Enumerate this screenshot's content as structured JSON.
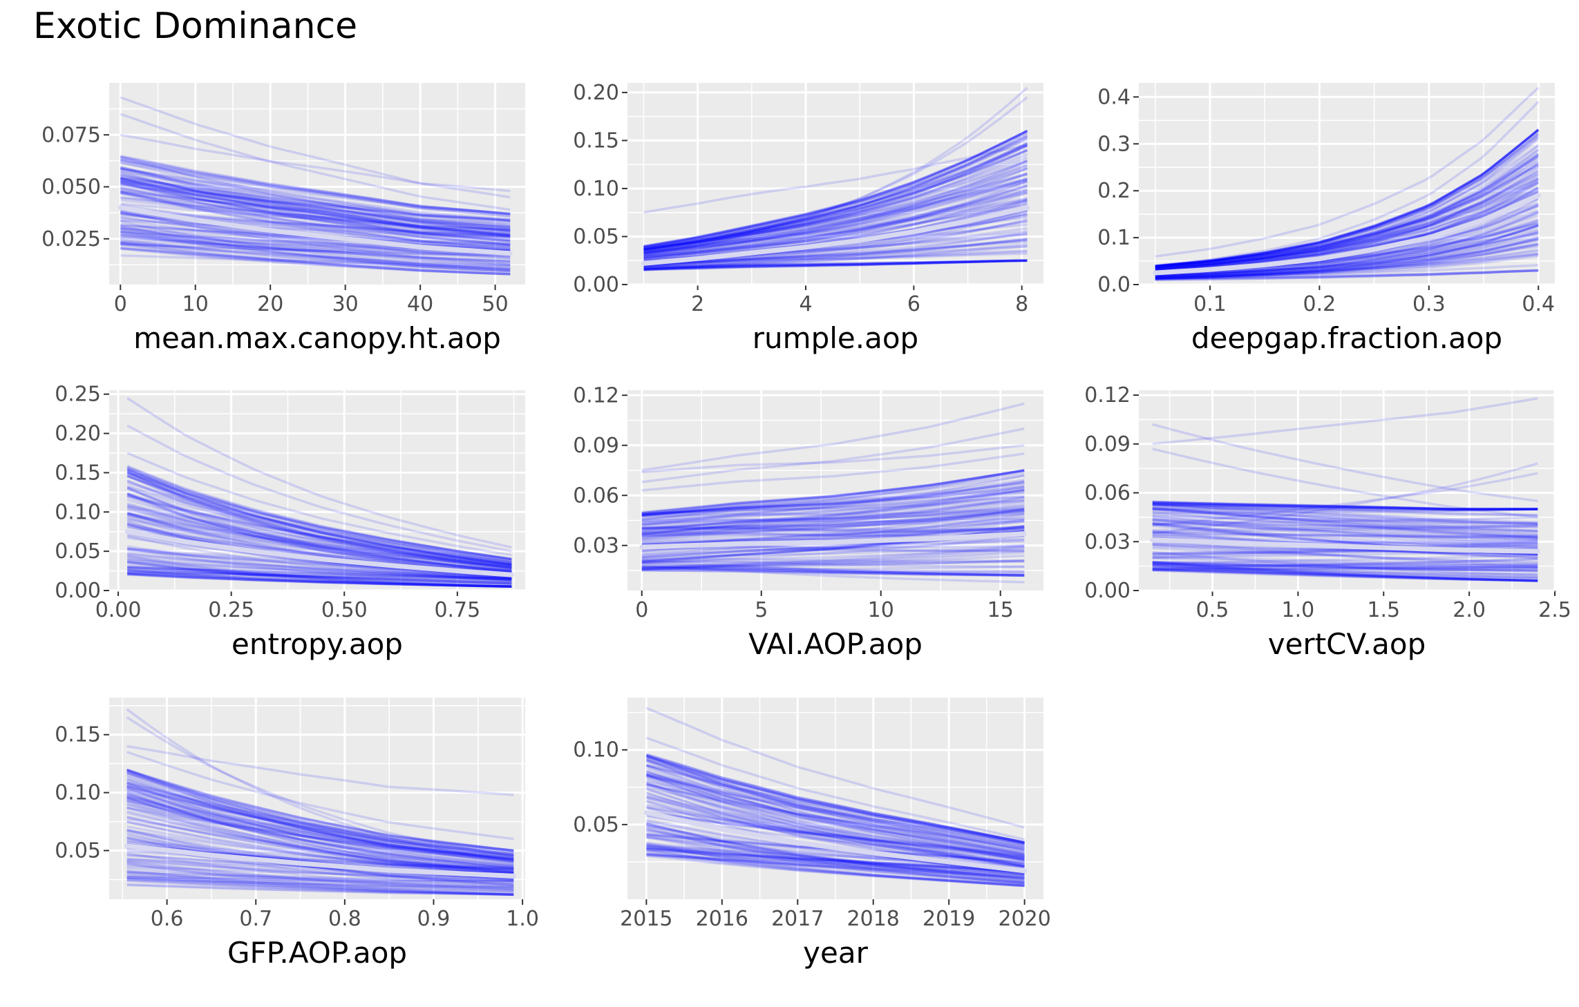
{
  "title": "Exotic Dominance",
  "style": {
    "panel_bg": "#EBEBEB",
    "grid_color": "#FFFFFF",
    "draw_color": "#0000FF",
    "mean_color": "#D8D8F0",
    "tick_text_color": "#4D4D4D",
    "axis_title_color": "#000000"
  },
  "chart_data": [
    {
      "type": "line",
      "xlabel": "mean.max.canopy.ht.aop",
      "ylabel": "",
      "xlim": [
        -1.5,
        54
      ],
      "ylim": [
        0.003,
        0.1
      ],
      "xticks": [
        0,
        10,
        20,
        30,
        40,
        50
      ],
      "xtick_labels": [
        "0",
        "10",
        "20",
        "30",
        "40",
        "50"
      ],
      "yticks": [
        0.025,
        0.05,
        0.075
      ],
      "ytick_labels": [
        "0.025",
        "0.050",
        "0.075"
      ],
      "x_range": [
        0,
        52
      ],
      "mean_curve": {
        "x": [
          0,
          10,
          20,
          30,
          40,
          52
        ],
        "y": [
          0.04,
          0.034,
          0.029,
          0.025,
          0.021,
          0.018
        ]
      },
      "draws_start_range": [
        0.02,
        0.065
      ],
      "draws_end_range": [
        0.008,
        0.037
      ],
      "outlier_draws": [
        {
          "x": [
            0,
            52
          ],
          "y": [
            0.093,
            0.045
          ]
        },
        {
          "x": [
            0,
            52
          ],
          "y": [
            0.085,
            0.039
          ]
        },
        {
          "x": [
            0,
            52
          ],
          "y": [
            0.075,
            0.048
          ]
        },
        {
          "x": [
            0,
            52
          ],
          "y": [
            0.017,
            0.012
          ]
        }
      ],
      "n_draws": 110,
      "grid": true
    },
    {
      "type": "line",
      "xlabel": "rumple.aop",
      "ylabel": "",
      "xlim": [
        0.7,
        8.4
      ],
      "ylim": [
        0.0,
        0.21
      ],
      "xticks": [
        2,
        4,
        6,
        8
      ],
      "xtick_labels": [
        "2",
        "4",
        "6",
        "8"
      ],
      "yticks": [
        0.0,
        0.05,
        0.1,
        0.15,
        0.2
      ],
      "ytick_labels": [
        "0.00",
        "0.05",
        "0.10",
        "0.15",
        "0.20"
      ],
      "x_range": [
        1.0,
        8.1
      ],
      "mean_curve": {
        "x": [
          1,
          2,
          3,
          4,
          5,
          6,
          7,
          8.1
        ],
        "y": [
          0.022,
          0.027,
          0.033,
          0.039,
          0.046,
          0.055,
          0.066,
          0.08
        ]
      },
      "draws_start_range": [
        0.015,
        0.04
      ],
      "draws_end_range": [
        0.025,
        0.16
      ],
      "outlier_draws": [
        {
          "x": [
            1,
            8.1
          ],
          "y": [
            0.075,
            0.145
          ]
        },
        {
          "x": [
            1,
            8.1
          ],
          "y": [
            0.03,
            0.205
          ]
        },
        {
          "x": [
            1,
            8.1
          ],
          "y": [
            0.032,
            0.195
          ]
        }
      ],
      "n_draws": 110,
      "grid": true
    },
    {
      "type": "line",
      "xlabel": "deepgap.fraction.aop",
      "ylabel": "",
      "xlim": [
        0.035,
        0.415
      ],
      "ylim": [
        0.0,
        0.43
      ],
      "xticks": [
        0.1,
        0.2,
        0.3,
        0.4
      ],
      "xtick_labels": [
        "0.1",
        "0.2",
        "0.3",
        "0.4"
      ],
      "yticks": [
        0.0,
        0.1,
        0.2,
        0.3,
        0.4
      ],
      "ytick_labels": [
        "0.0",
        "0.1",
        "0.2",
        "0.3",
        "0.4"
      ],
      "x_range": [
        0.05,
        0.4
      ],
      "mean_curve": {
        "x": [
          0.05,
          0.1,
          0.15,
          0.2,
          0.25,
          0.3,
          0.35,
          0.4
        ],
        "y": [
          0.025,
          0.032,
          0.042,
          0.055,
          0.075,
          0.1,
          0.138,
          0.19
        ]
      },
      "draws_start_range": [
        0.01,
        0.04
      ],
      "draws_end_range": [
        0.03,
        0.33
      ],
      "outlier_draws": [
        {
          "x": [
            0.05,
            0.4
          ],
          "y": [
            0.06,
            0.42
          ]
        },
        {
          "x": [
            0.05,
            0.4
          ],
          "y": [
            0.04,
            0.39
          ]
        }
      ],
      "n_draws": 110,
      "grid": true
    },
    {
      "type": "line",
      "xlabel": "entropy.aop",
      "ylabel": "",
      "xlim": [
        -0.02,
        0.9
      ],
      "ylim": [
        0.0,
        0.255
      ],
      "xticks": [
        0.0,
        0.25,
        0.5,
        0.75
      ],
      "xtick_labels": [
        "0.00",
        "0.25",
        "0.50",
        "0.75"
      ],
      "yticks": [
        0.0,
        0.05,
        0.1,
        0.15,
        0.2,
        0.25
      ],
      "ytick_labels": [
        "0.00",
        "0.05",
        "0.10",
        "0.15",
        "0.20",
        "0.25"
      ],
      "x_range": [
        0.02,
        0.87
      ],
      "mean_curve": {
        "x": [
          0.02,
          0.15,
          0.3,
          0.45,
          0.6,
          0.75,
          0.87
        ],
        "y": [
          0.075,
          0.062,
          0.05,
          0.04,
          0.032,
          0.025,
          0.02
        ]
      },
      "draws_start_range": [
        0.02,
        0.16
      ],
      "draws_end_range": [
        0.005,
        0.04
      ],
      "outlier_draws": [
        {
          "x": [
            0.02,
            0.87
          ],
          "y": [
            0.245,
            0.055
          ]
        },
        {
          "x": [
            0.02,
            0.87
          ],
          "y": [
            0.21,
            0.05
          ]
        },
        {
          "x": [
            0.02,
            0.87
          ],
          "y": [
            0.175,
            0.045
          ]
        }
      ],
      "n_draws": 110,
      "grid": true
    },
    {
      "type": "line",
      "xlabel": "VAI.AOP.aop",
      "ylabel": "",
      "xlim": [
        -0.6,
        16.8
      ],
      "ylim": [
        0.003,
        0.123
      ],
      "xticks": [
        0,
        5,
        10,
        15
      ],
      "xtick_labels": [
        "0",
        "5",
        "10",
        "15"
      ],
      "yticks": [
        0.03,
        0.06,
        0.09,
        0.12
      ],
      "ytick_labels": [
        "0.03",
        "0.06",
        "0.09",
        "0.12"
      ],
      "x_range": [
        0,
        16
      ],
      "mean_curve": {
        "x": [
          0,
          4,
          8,
          12,
          16
        ],
        "y": [
          0.029,
          0.031,
          0.032,
          0.034,
          0.037
        ]
      },
      "draws_start_range": [
        0.015,
        0.05
      ],
      "draws_end_range": [
        0.012,
        0.075
      ],
      "outlier_draws": [
        {
          "x": [
            0,
            16
          ],
          "y": [
            0.075,
            0.115
          ]
        },
        {
          "x": [
            0,
            16
          ],
          "y": [
            0.068,
            0.1
          ]
        },
        {
          "x": [
            0,
            16
          ],
          "y": [
            0.074,
            0.09
          ]
        },
        {
          "x": [
            0,
            16
          ],
          "y": [
            0.063,
            0.085
          ]
        },
        {
          "x": [
            0,
            16
          ],
          "y": [
            0.018,
            0.008
          ]
        }
      ],
      "n_draws": 110,
      "grid": true
    },
    {
      "type": "line",
      "xlabel": "vertCV.aop",
      "ylabel": "",
      "xlim": [
        0.07,
        2.5
      ],
      "ylim": [
        0.0,
        0.123
      ],
      "xticks": [
        0.5,
        1.0,
        1.5,
        2.0,
        2.5
      ],
      "xtick_labels": [
        "0.5",
        "1.0",
        "1.5",
        "2.0",
        "2.5"
      ],
      "yticks": [
        0.0,
        0.03,
        0.06,
        0.09,
        0.12
      ],
      "ytick_labels": [
        "0.00",
        "0.03",
        "0.06",
        "0.09",
        "0.12"
      ],
      "x_range": [
        0.15,
        2.4
      ],
      "mean_curve": {
        "x": [
          0.15,
          0.7,
          1.3,
          1.9,
          2.4
        ],
        "y": [
          0.031,
          0.029,
          0.027,
          0.025,
          0.024
        ]
      },
      "draws_start_range": [
        0.012,
        0.055
      ],
      "draws_end_range": [
        0.006,
        0.05
      ],
      "outlier_draws": [
        {
          "x": [
            0.15,
            2.4
          ],
          "y": [
            0.09,
            0.118
          ]
        },
        {
          "x": [
            0.15,
            2.4
          ],
          "y": [
            0.102,
            0.055
          ]
        },
        {
          "x": [
            0.15,
            2.4
          ],
          "y": [
            0.087,
            0.045
          ]
        },
        {
          "x": [
            0.15,
            2.4
          ],
          "y": [
            0.035,
            0.078
          ]
        },
        {
          "x": [
            0.15,
            2.4
          ],
          "y": [
            0.04,
            0.072
          ]
        }
      ],
      "n_draws": 110,
      "grid": true
    },
    {
      "type": "line",
      "xlabel": "GFP.AOP.aop",
      "ylabel": "",
      "xlim": [
        0.535,
        1.003
      ],
      "ylim": [
        0.008,
        0.182
      ],
      "xticks": [
        0.6,
        0.7,
        0.8,
        0.9,
        1.0
      ],
      "xtick_labels": [
        "0.6",
        "0.7",
        "0.8",
        "0.9",
        "1.0"
      ],
      "yticks": [
        0.05,
        0.1,
        0.15
      ],
      "ytick_labels": [
        "0.05",
        "0.10",
        "0.15"
      ],
      "x_range": [
        0.555,
        0.99
      ],
      "mean_curve": {
        "x": [
          0.555,
          0.65,
          0.75,
          0.85,
          0.99
        ],
        "y": [
          0.054,
          0.046,
          0.039,
          0.033,
          0.028
        ]
      },
      "draws_start_range": [
        0.02,
        0.12
      ],
      "draws_end_range": [
        0.012,
        0.05
      ],
      "outlier_draws": [
        {
          "x": [
            0.555,
            0.99
          ],
          "y": [
            0.172,
            0.04
          ]
        },
        {
          "x": [
            0.555,
            0.99
          ],
          "y": [
            0.165,
            0.045
          ]
        },
        {
          "x": [
            0.555,
            0.99
          ],
          "y": [
            0.14,
            0.098
          ]
        },
        {
          "x": [
            0.555,
            0.99
          ],
          "y": [
            0.135,
            0.06
          ]
        }
      ],
      "n_draws": 110,
      "grid": true
    },
    {
      "type": "line",
      "xlabel": "year",
      "ylabel": "",
      "xlim": [
        2014.75,
        2020.25
      ],
      "ylim": [
        0.0,
        0.135
      ],
      "xticks": [
        2015,
        2016,
        2017,
        2018,
        2019,
        2020
      ],
      "xtick_labels": [
        "2015",
        "2016",
        "2017",
        "2018",
        "2019",
        "2020"
      ],
      "yticks": [
        0.05,
        0.1
      ],
      "ytick_labels": [
        "0.05",
        "0.10"
      ],
      "x_range": [
        2015,
        2020
      ],
      "mean_curve": {
        "x": [
          2015,
          2016,
          2017,
          2018,
          2019,
          2020
        ],
        "y": [
          0.058,
          0.047,
          0.038,
          0.031,
          0.025,
          0.019
        ]
      },
      "draws_start_range": [
        0.028,
        0.098
      ],
      "draws_end_range": [
        0.009,
        0.038
      ],
      "outlier_draws": [
        {
          "x": [
            2015,
            2020
          ],
          "y": [
            0.128,
            0.048
          ]
        },
        {
          "x": [
            2015,
            2020
          ],
          "y": [
            0.108,
            0.04
          ]
        }
      ],
      "n_draws": 110,
      "grid": true
    }
  ]
}
